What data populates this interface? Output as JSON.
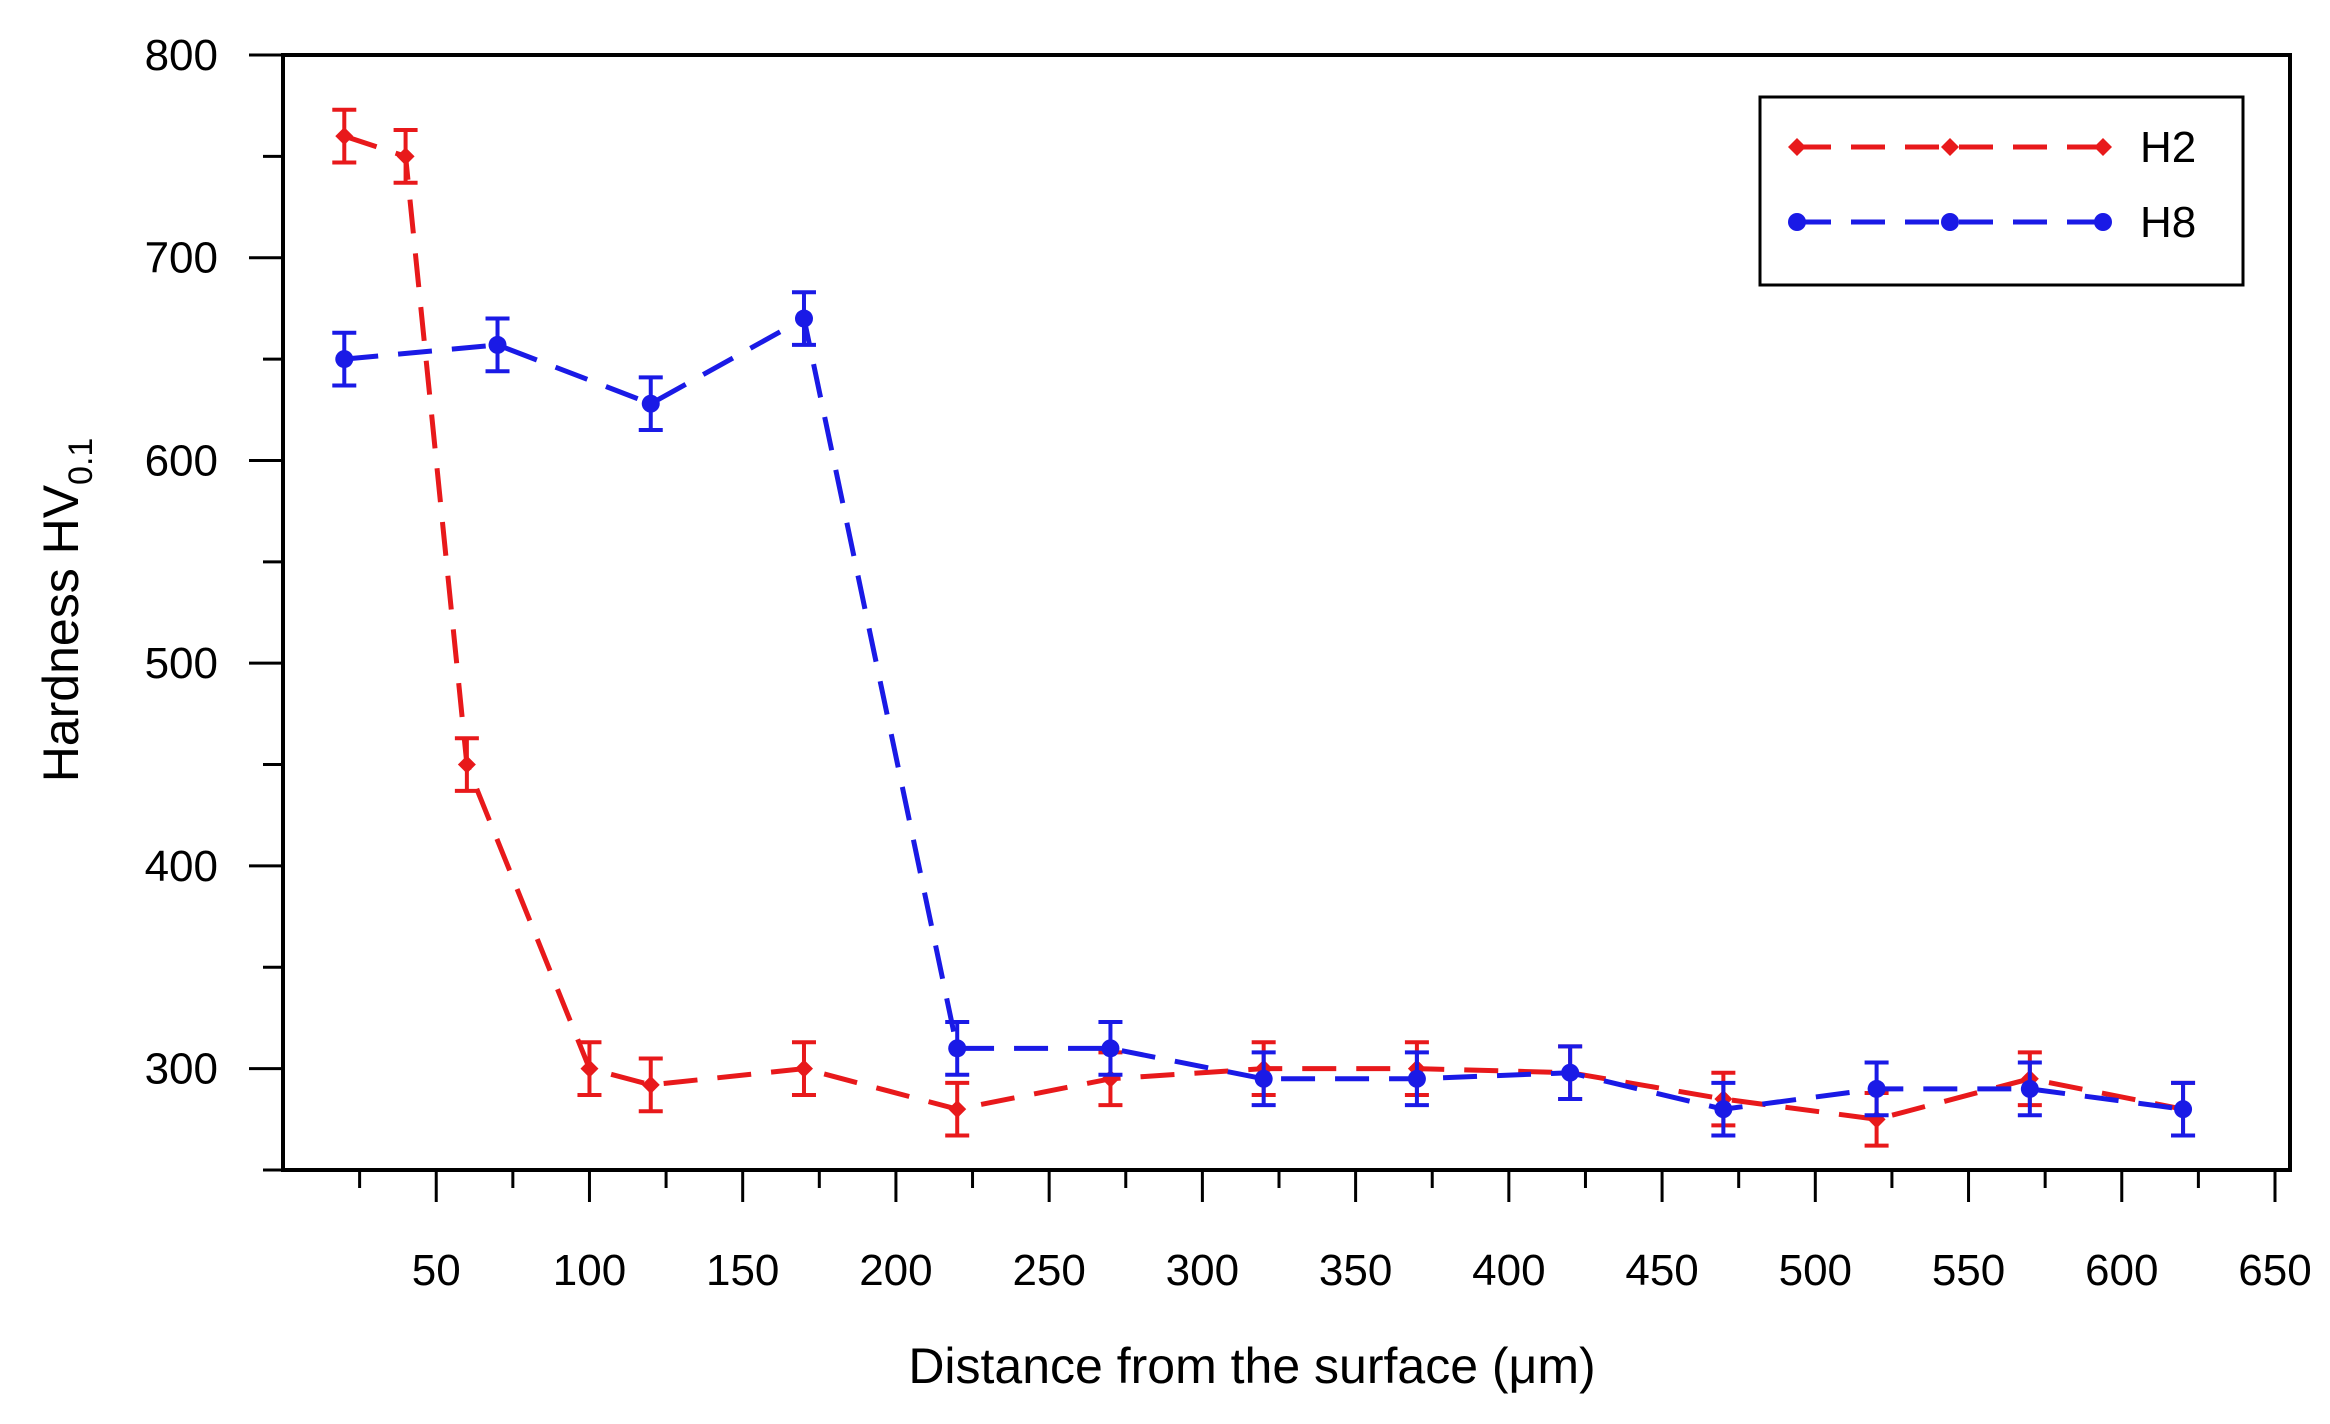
{
  "chart_data": {
    "type": "line",
    "title": "",
    "xlabel": "Distance from the surface (μm)",
    "ylabel_main": "Hardness HV",
    "ylabel_sub": "0.1",
    "xlim": [
      0,
      650
    ],
    "ylim": [
      250,
      800
    ],
    "x_ticks": [
      50,
      100,
      150,
      200,
      250,
      300,
      350,
      400,
      450,
      500,
      550,
      600,
      650
    ],
    "y_ticks": [
      300,
      400,
      500,
      600,
      700,
      800
    ],
    "grid": false,
    "legend_position": "top-right",
    "series": [
      {
        "name": "H2",
        "color": "#e8191b",
        "marker": "diamond",
        "line_style": "dashed",
        "x": [
          20,
          40,
          60,
          100,
          120,
          170,
          220,
          270,
          320,
          370,
          420,
          470,
          520,
          570,
          620
        ],
        "y": [
          760,
          750,
          450,
          300,
          292,
          300,
          280,
          295,
          300,
          300,
          298,
          285,
          275,
          295,
          280
        ],
        "err": [
          13,
          13,
          13,
          13,
          13,
          13,
          13,
          13,
          13,
          13,
          13,
          13,
          13,
          13,
          13
        ]
      },
      {
        "name": "H8",
        "color": "#1a1ae6",
        "marker": "circle",
        "line_style": "dashed",
        "x": [
          20,
          70,
          120,
          170,
          220,
          270,
          320,
          370,
          420,
          470,
          520,
          570,
          620
        ],
        "y": [
          650,
          657,
          628,
          670,
          310,
          310,
          295,
          295,
          298,
          280,
          290,
          290,
          280
        ],
        "err": [
          13,
          13,
          13,
          13,
          13,
          13,
          13,
          13,
          13,
          13,
          13,
          13,
          13
        ]
      }
    ]
  }
}
